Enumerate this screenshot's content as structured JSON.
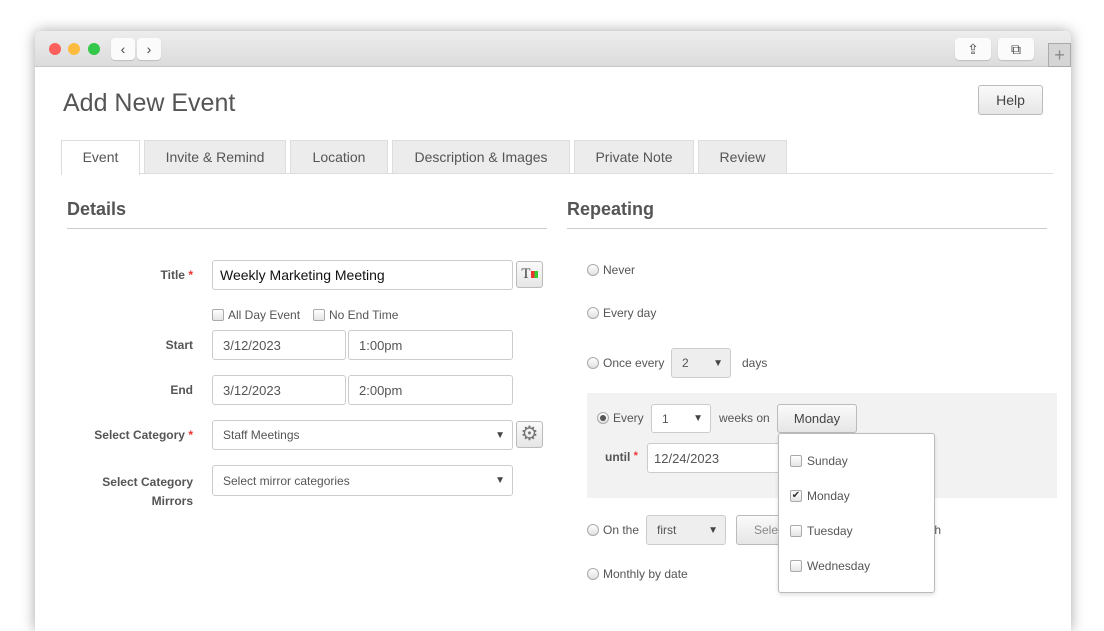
{
  "header": {
    "title": "Add New Event",
    "help_label": "Help"
  },
  "tabs": [
    {
      "label": "Event",
      "active": true
    },
    {
      "label": "Invite & Remind"
    },
    {
      "label": "Location"
    },
    {
      "label": "Description & Images"
    },
    {
      "label": "Private Note"
    },
    {
      "label": "Review"
    }
  ],
  "details": {
    "heading": "Details",
    "title_label": "Title",
    "title_value": "Weekly Marketing Meeting",
    "all_day_label": "All Day Event",
    "no_end_label": "No End Time",
    "start_label": "Start",
    "start_date": "3/12/2023",
    "start_time": "1:00pm",
    "end_label": "End",
    "end_date": "3/12/2023",
    "end_time": "2:00pm",
    "category_label": "Select Category",
    "category_value": "Staff Meetings",
    "mirrors_label_1": "Select Category",
    "mirrors_label_2": "Mirrors",
    "mirrors_placeholder": "Select mirror categories",
    "required_mark": "*"
  },
  "repeating": {
    "heading": "Repeating",
    "never": "Never",
    "every_day": "Every day",
    "once_every": "Once every",
    "once_every_value": "2",
    "days": "days",
    "every": "Every",
    "every_value": "1",
    "weeks_on": "weeks on",
    "weekday_button": "Monday",
    "until": "until",
    "until_value": "12/24/2023",
    "on_the": "On the",
    "on_the_value": "first",
    "select_button": "Sele",
    "month_suffix": "th",
    "monthly_by_date": "Monthly by date",
    "selected_option": "every_weeks",
    "weekday_options": [
      {
        "label": "Sunday",
        "checked": false
      },
      {
        "label": "Monday",
        "checked": true
      },
      {
        "label": "Tuesday",
        "checked": false
      },
      {
        "label": "Wednesday",
        "checked": false
      }
    ]
  }
}
